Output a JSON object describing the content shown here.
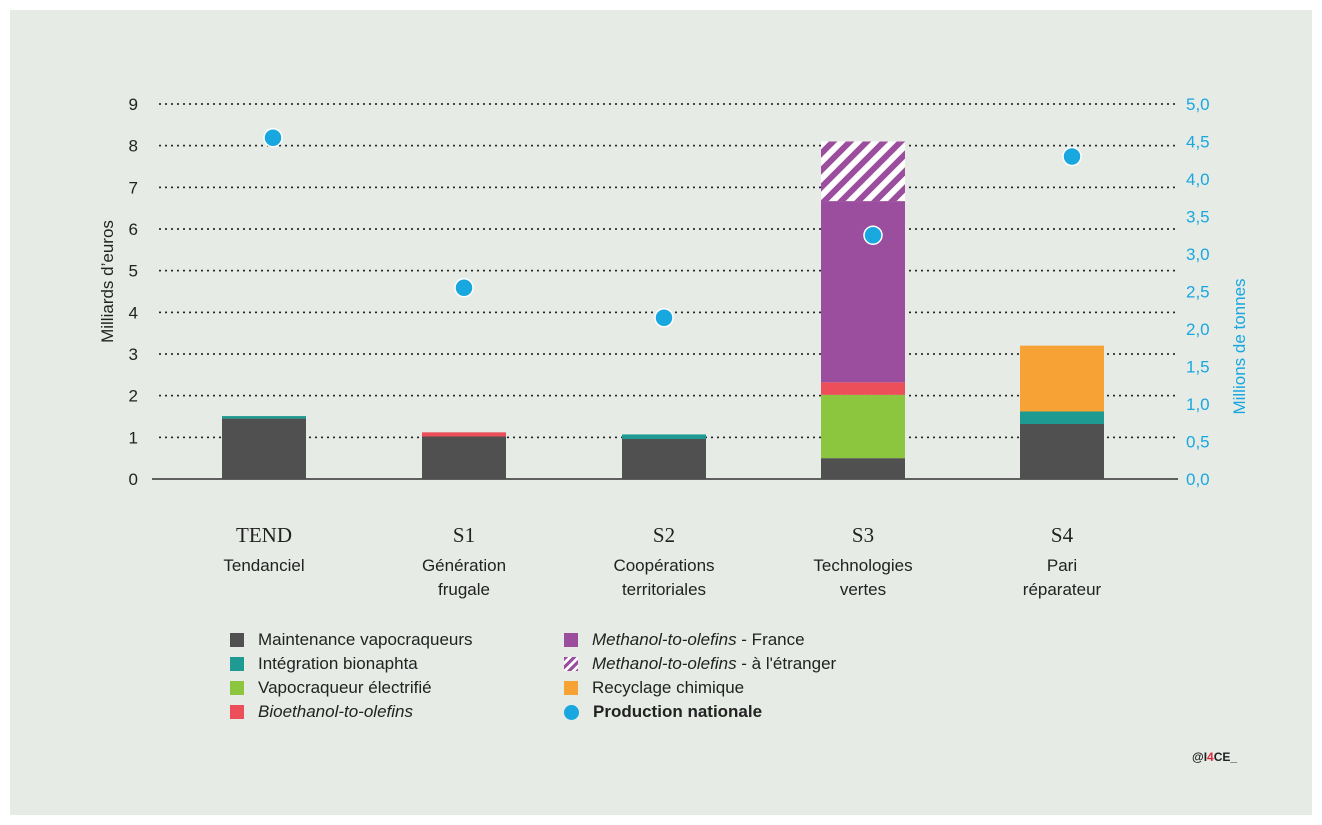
{
  "chart_data": {
    "type": "bar",
    "categories": [
      "TEND",
      "S1",
      "S2",
      "S3",
      "S4"
    ],
    "category_subtitles": [
      "Tendanciel",
      "Génération frugale",
      "Coopérations territoriales",
      "Technologies vertes",
      "Pari réparateur"
    ],
    "ylabel": "Milliards d’euros",
    "y2label": "Millions de tonnes",
    "ylim": [
      0,
      9
    ],
    "y2lim": [
      0,
      5
    ],
    "y_ticks": [
      "0",
      "1",
      "2",
      "3",
      "4",
      "5",
      "6",
      "7",
      "8",
      "9"
    ],
    "y2_ticks": [
      "0,0",
      "0,5",
      "1,0",
      "1,5",
      "2,0",
      "2,5",
      "3,0",
      "3,5",
      "4,0",
      "4,5",
      "5,0"
    ],
    "grid": "dotted horizontal",
    "stacked": true,
    "series": [
      {
        "name": "Maintenance vapocraqueurs",
        "color": "#505050",
        "values": [
          1.45,
          1.02,
          0.96,
          0.5,
          1.32
        ]
      },
      {
        "name": "Intégration bionaphta",
        "color": "#1e9a93",
        "values": [
          0.06,
          0.0,
          0.11,
          0.0,
          0.3
        ]
      },
      {
        "name": "Vapocraqueur électrifié",
        "color": "#8cc63f",
        "values": [
          0,
          0,
          0,
          1.52,
          0
        ]
      },
      {
        "name": "Bioethanol-to-olefins",
        "color": "#ec4f5a",
        "values": [
          0,
          0.1,
          0,
          0.3,
          0
        ]
      },
      {
        "name": "Methanol-to-olefins - France",
        "color": "#9b4d9e",
        "values": [
          0,
          0,
          0,
          4.35,
          0
        ]
      },
      {
        "name": "Methanol-to-olefins - à l'étranger",
        "color": "#9b4d9e",
        "pattern": "hatch",
        "values": [
          0,
          0,
          0,
          1.43,
          0
        ]
      },
      {
        "name": "Recyclage chimique",
        "color": "#f7a235",
        "values": [
          0,
          0,
          0,
          0,
          1.58
        ]
      }
    ],
    "points": {
      "name": "Production nationale",
      "color": "#19a7e0",
      "axis": "right",
      "values": [
        4.55,
        2.55,
        2.15,
        3.25,
        4.3
      ]
    }
  },
  "legend": {
    "items": [
      {
        "pre": "",
        "em": "",
        "post": "Maintenance vapocraqueurs",
        "color": "#505050",
        "kind": "square"
      },
      {
        "pre": "",
        "em": "",
        "post": "Intégration bionaphta",
        "color": "#1e9a93",
        "kind": "square"
      },
      {
        "pre": "",
        "em": "",
        "post": "Vapocraqueur électrifié",
        "color": "#8cc63f",
        "kind": "square"
      },
      {
        "pre": "",
        "em": "Bioethanol-to-olefins",
        "post": "",
        "color": "#ec4f5a",
        "kind": "square"
      },
      {
        "pre": "",
        "em": "Methanol-to-olefins",
        "post": " - France",
        "color": "#9b4d9e",
        "kind": "square"
      },
      {
        "pre": "",
        "em": "Methanol-to-olefins",
        "post": " - à l'étranger",
        "color": "#9b4d9e",
        "kind": "hatch"
      },
      {
        "pre": "",
        "em": "",
        "post": "Recyclage chimique",
        "color": "#f7a235",
        "kind": "square"
      },
      {
        "pre": "",
        "em": "",
        "post": "Production nationale",
        "color": "#19a7e0",
        "kind": "dot",
        "bold": true
      }
    ]
  },
  "credit": {
    "prefix": "@I",
    "accent": "4",
    "suffix": "CE_"
  }
}
